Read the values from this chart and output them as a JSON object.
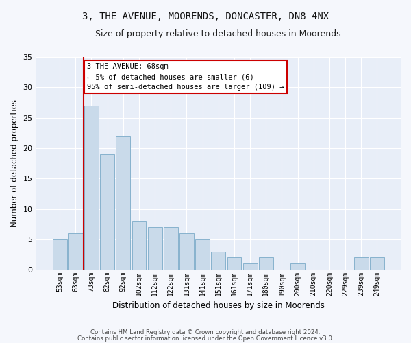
{
  "title": "3, THE AVENUE, MOORENDS, DONCASTER, DN8 4NX",
  "subtitle": "Size of property relative to detached houses in Moorends",
  "xlabel": "Distribution of detached houses by size in Moorends",
  "ylabel": "Number of detached properties",
  "bar_color": "#c9daea",
  "bar_edge_color": "#7aaac8",
  "background_color": "#e8eef8",
  "grid_color": "#ffffff",
  "fig_background": "#f5f7fc",
  "categories": [
    "53sqm",
    "63sqm",
    "73sqm",
    "82sqm",
    "92sqm",
    "102sqm",
    "112sqm",
    "122sqm",
    "131sqm",
    "141sqm",
    "151sqm",
    "161sqm",
    "171sqm",
    "180sqm",
    "190sqm",
    "200sqm",
    "210sqm",
    "220sqm",
    "229sqm",
    "239sqm",
    "249sqm"
  ],
  "values": [
    5,
    6,
    27,
    19,
    22,
    8,
    7,
    7,
    6,
    5,
    3,
    2,
    1,
    2,
    0,
    1,
    0,
    0,
    0,
    2,
    2
  ],
  "ylim": [
    0,
    35
  ],
  "yticks": [
    0,
    5,
    10,
    15,
    20,
    25,
    30,
    35
  ],
  "annotation_line1": "3 THE AVENUE: 68sqm",
  "annotation_line2": "← 5% of detached houses are smaller (6)",
  "annotation_line3": "95% of semi-detached houses are larger (109) →",
  "marker_color": "#cc0000",
  "footer1": "Contains HM Land Registry data © Crown copyright and database right 2024.",
  "footer2": "Contains public sector information licensed under the Open Government Licence v3.0."
}
